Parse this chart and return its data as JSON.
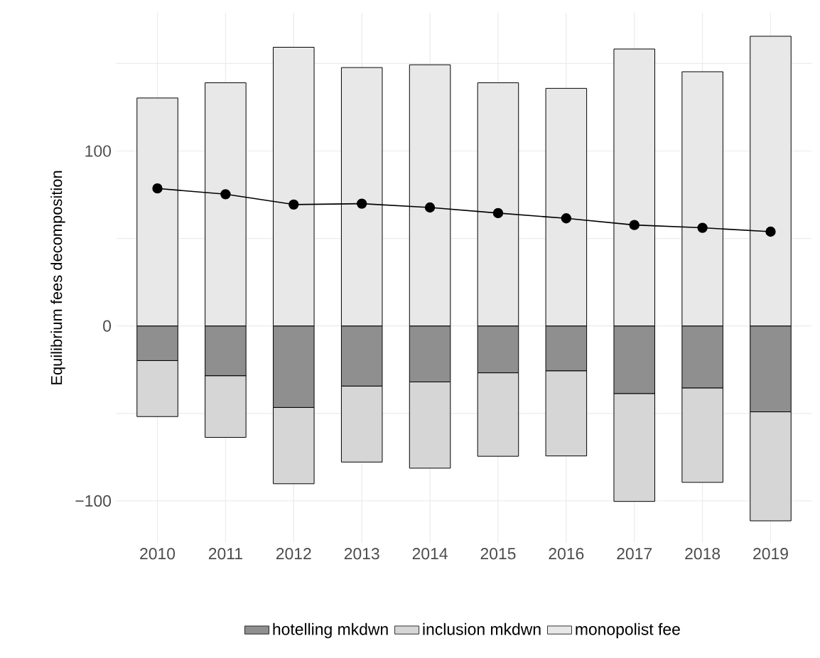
{
  "chart_data": {
    "type": "bar",
    "stacked": true,
    "ylabel": "Equilibrium fees decomposition",
    "categories": [
      "2010",
      "2011",
      "2012",
      "2013",
      "2014",
      "2015",
      "2016",
      "2017",
      "2018",
      "2019"
    ],
    "series": [
      {
        "name": "hotelling mkdwn",
        "color": "#8f8f8f",
        "values": [
          -19.8,
          -28.5,
          -46.6,
          -34.4,
          -32,
          -26.8,
          -25.7,
          -38.7,
          -35.5,
          -49.1
        ]
      },
      {
        "name": "inclusion mkdwn",
        "color": "#d6d6d6",
        "values": [
          -32,
          -35.2,
          -43.6,
          -43.4,
          -49.3,
          -47.7,
          -48.6,
          -61.6,
          -53.9,
          -62.3
        ]
      },
      {
        "name": "monopolist fee",
        "color": "#e8e8e8",
        "values": [
          130.3,
          139,
          159.3,
          147.7,
          149.3,
          139,
          135.8,
          158.3,
          145.3,
          165.6
        ]
      },
      {
        "type": "line",
        "color": "#000000",
        "marker": "circle",
        "values": [
          78.6,
          75.3,
          69.4,
          69.9,
          67.7,
          64.5,
          61.5,
          57.7,
          56.1,
          53.9
        ]
      }
    ],
    "ylim": [
      -124,
      179
    ],
    "yticks": [
      {
        "value": -100,
        "label": "−100"
      },
      {
        "value": -50,
        "label": null
      },
      {
        "value": 0,
        "label": "0"
      },
      {
        "value": 50,
        "label": null
      },
      {
        "value": 100,
        "label": "100"
      },
      {
        "value": 150,
        "label": null
      }
    ],
    "grid": true,
    "legend": "bottom"
  }
}
